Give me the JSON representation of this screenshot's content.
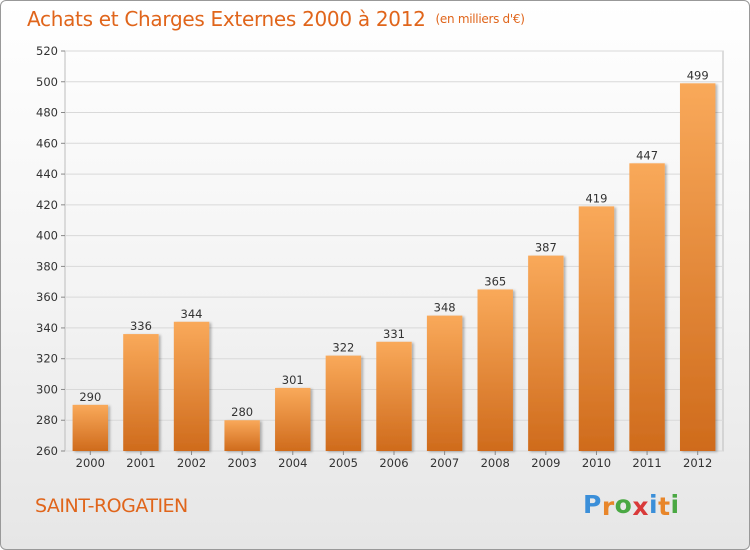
{
  "title": "Achats et Charges Externes 2000 à 2012",
  "unit_label": "(en milliers d'€)",
  "location": "SAINT-ROGATIEN",
  "logo": {
    "text": "Proxiti",
    "letters": [
      {
        "ch": "P",
        "color": "#3b8fd9"
      },
      {
        "ch": "r",
        "color": "#e8862a"
      },
      {
        "ch": "o",
        "color": "#4aa843"
      },
      {
        "ch": "x",
        "color": "#d93a3a"
      },
      {
        "ch": "i",
        "color": "#3b8fd9"
      },
      {
        "ch": "t",
        "color": "#e8862a"
      },
      {
        "ch": "i",
        "color": "#4aa843"
      }
    ]
  },
  "colors": {
    "accent": "#e0651b",
    "bar_light": "#f9a95a",
    "bar_dark": "#cf6b1c",
    "grid": "#d9d9d9",
    "axis_text": "#333333"
  },
  "chart_data": {
    "type": "bar",
    "title": "Achats et Charges Externes 2000 à 2012",
    "subtitle": "(en milliers d'€)",
    "xlabel": "",
    "ylabel": "",
    "categories": [
      "2000",
      "2001",
      "2002",
      "2003",
      "2004",
      "2005",
      "2006",
      "2007",
      "2008",
      "2009",
      "2010",
      "2011",
      "2012"
    ],
    "values": [
      290,
      336,
      344,
      280,
      301,
      322,
      331,
      348,
      365,
      387,
      419,
      447,
      499
    ],
    "ylim": [
      260,
      520
    ],
    "yticks": [
      260,
      280,
      300,
      320,
      340,
      360,
      380,
      400,
      420,
      440,
      460,
      480,
      500,
      520
    ],
    "grid": true,
    "data_labels": true
  }
}
